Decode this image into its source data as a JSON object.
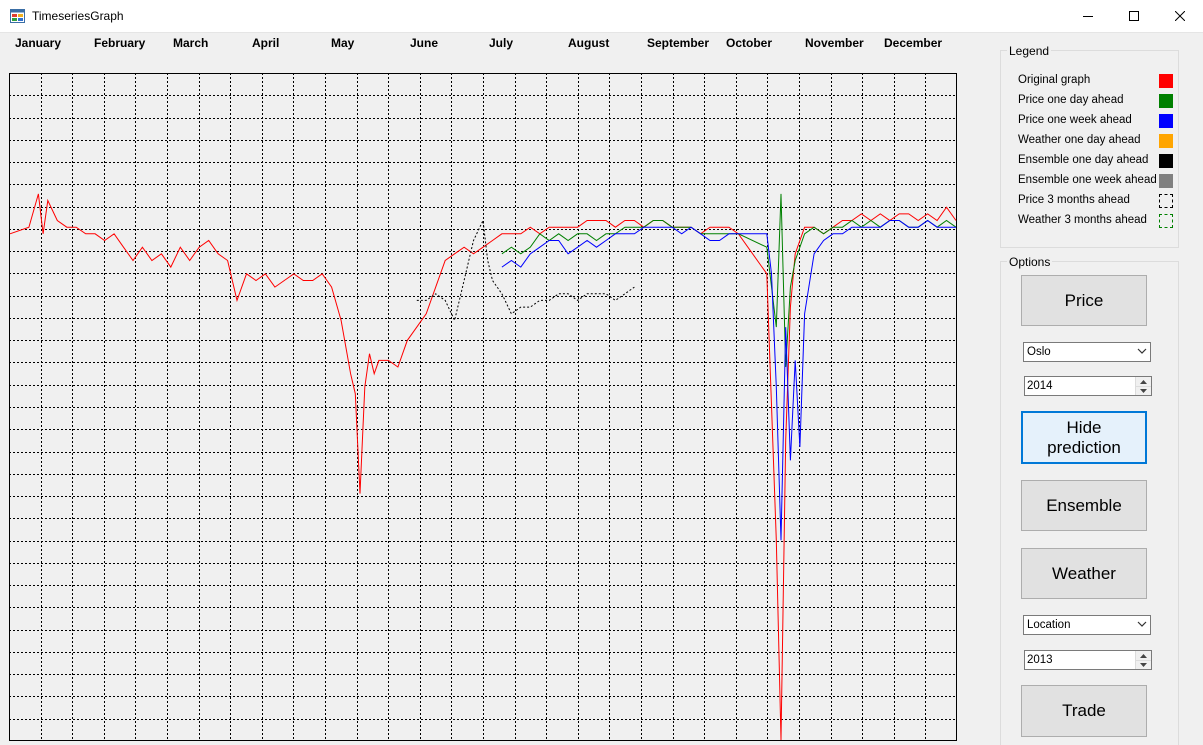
{
  "window": {
    "title": "TimeseriesGraph"
  },
  "icons": {
    "app": "app-window-icon",
    "minimize": "minimize-icon",
    "maximize": "maximize-icon",
    "close": "close-icon"
  },
  "chart_data": {
    "type": "line",
    "title": "",
    "xlabel": "",
    "ylabel": "",
    "categories": [
      "January",
      "February",
      "March",
      "April",
      "May",
      "June",
      "July",
      "August",
      "September",
      "October",
      "November",
      "December"
    ],
    "grid": true,
    "ylim": [
      0,
      1
    ],
    "series": [
      {
        "name": "Original graph",
        "color": "#ff0000",
        "style": "solid",
        "x": [
          0,
          0.02,
          0.03,
          0.035,
          0.04,
          0.05,
          0.06,
          0.07,
          0.08,
          0.09,
          0.1,
          0.11,
          0.12,
          0.13,
          0.14,
          0.15,
          0.16,
          0.17,
          0.18,
          0.19,
          0.2,
          0.21,
          0.22,
          0.23,
          0.24,
          0.25,
          0.26,
          0.27,
          0.28,
          0.29,
          0.3,
          0.31,
          0.32,
          0.33,
          0.34,
          0.35,
          0.36,
          0.365,
          0.37,
          0.375,
          0.38,
          0.385,
          0.39,
          0.4,
          0.41,
          0.42,
          0.43,
          0.44,
          0.45,
          0.46,
          0.47,
          0.48,
          0.49,
          0.5,
          0.51,
          0.52,
          0.53,
          0.54,
          0.55,
          0.56,
          0.57,
          0.58,
          0.59,
          0.6,
          0.61,
          0.62,
          0.63,
          0.64,
          0.65,
          0.66,
          0.67,
          0.68,
          0.69,
          0.7,
          0.71,
          0.72,
          0.73,
          0.74,
          0.75,
          0.76,
          0.77,
          0.8,
          0.81,
          0.815,
          0.82,
          0.825,
          0.83,
          0.84,
          0.85,
          0.86,
          0.87,
          0.88,
          0.89,
          0.9,
          0.91,
          0.92,
          0.93,
          0.94,
          0.95,
          0.96,
          0.97,
          0.98,
          0.99,
          1.0
        ],
        "y": [
          0.76,
          0.77,
          0.82,
          0.76,
          0.81,
          0.78,
          0.77,
          0.77,
          0.76,
          0.76,
          0.75,
          0.76,
          0.74,
          0.72,
          0.74,
          0.72,
          0.73,
          0.71,
          0.74,
          0.72,
          0.74,
          0.75,
          0.73,
          0.72,
          0.66,
          0.7,
          0.69,
          0.7,
          0.68,
          0.69,
          0.7,
          0.69,
          0.69,
          0.7,
          0.68,
          0.63,
          0.55,
          0.52,
          0.37,
          0.53,
          0.58,
          0.55,
          0.57,
          0.57,
          0.56,
          0.6,
          0.62,
          0.64,
          0.68,
          0.72,
          0.73,
          0.74,
          0.73,
          0.74,
          0.75,
          0.76,
          0.76,
          0.76,
          0.77,
          0.76,
          0.77,
          0.77,
          0.77,
          0.77,
          0.78,
          0.78,
          0.78,
          0.77,
          0.78,
          0.78,
          0.77,
          0.78,
          0.78,
          0.77,
          0.77,
          0.77,
          0.76,
          0.77,
          0.77,
          0.77,
          0.76,
          0.7,
          0.3,
          0.0,
          0.45,
          0.65,
          0.73,
          0.77,
          0.77,
          0.76,
          0.77,
          0.78,
          0.78,
          0.79,
          0.78,
          0.79,
          0.78,
          0.79,
          0.79,
          0.78,
          0.79,
          0.78,
          0.8,
          0.78
        ]
      },
      {
        "name": "Price one day ahead",
        "color": "#008000",
        "style": "solid",
        "x": [
          0.52,
          0.53,
          0.54,
          0.55,
          0.56,
          0.57,
          0.58,
          0.59,
          0.6,
          0.61,
          0.62,
          0.63,
          0.64,
          0.65,
          0.66,
          0.67,
          0.68,
          0.69,
          0.7,
          0.71,
          0.72,
          0.73,
          0.74,
          0.75,
          0.76,
          0.77,
          0.8,
          0.81,
          0.815,
          0.82,
          0.825,
          0.83,
          0.84,
          0.85,
          0.86,
          0.87,
          0.88,
          0.89,
          0.9,
          0.91,
          0.92,
          0.93,
          0.94,
          0.95,
          0.96,
          0.97,
          0.98,
          0.99,
          1.0
        ],
        "y": [
          0.73,
          0.74,
          0.73,
          0.74,
          0.76,
          0.75,
          0.76,
          0.75,
          0.76,
          0.76,
          0.75,
          0.76,
          0.76,
          0.77,
          0.77,
          0.77,
          0.78,
          0.78,
          0.77,
          0.77,
          0.77,
          0.76,
          0.76,
          0.76,
          0.76,
          0.76,
          0.74,
          0.62,
          0.82,
          0.56,
          0.68,
          0.72,
          0.76,
          0.77,
          0.76,
          0.77,
          0.77,
          0.78,
          0.77,
          0.78,
          0.77,
          0.78,
          0.78,
          0.77,
          0.77,
          0.78,
          0.77,
          0.78,
          0.77
        ]
      },
      {
        "name": "Price one week ahead",
        "color": "#0000ff",
        "style": "solid",
        "x": [
          0.52,
          0.53,
          0.54,
          0.55,
          0.56,
          0.57,
          0.58,
          0.59,
          0.6,
          0.61,
          0.62,
          0.63,
          0.64,
          0.65,
          0.66,
          0.67,
          0.68,
          0.69,
          0.7,
          0.71,
          0.72,
          0.73,
          0.74,
          0.75,
          0.76,
          0.77,
          0.8,
          0.805,
          0.81,
          0.815,
          0.82,
          0.825,
          0.83,
          0.835,
          0.84,
          0.85,
          0.86,
          0.87,
          0.88,
          0.89,
          0.9,
          0.91,
          0.92,
          0.93,
          0.94,
          0.95,
          0.96,
          0.97,
          0.98,
          0.99,
          1.0
        ],
        "y": [
          0.71,
          0.72,
          0.71,
          0.73,
          0.74,
          0.75,
          0.75,
          0.73,
          0.74,
          0.75,
          0.74,
          0.75,
          0.76,
          0.76,
          0.76,
          0.77,
          0.77,
          0.77,
          0.77,
          0.76,
          0.77,
          0.76,
          0.75,
          0.75,
          0.76,
          0.76,
          0.76,
          0.7,
          0.53,
          0.3,
          0.62,
          0.42,
          0.57,
          0.44,
          0.64,
          0.73,
          0.75,
          0.76,
          0.76,
          0.77,
          0.77,
          0.77,
          0.77,
          0.78,
          0.78,
          0.77,
          0.77,
          0.78,
          0.77,
          0.77,
          0.77
        ]
      },
      {
        "name": "Price 3 months ahead",
        "color": "#000000",
        "style": "dashed",
        "x": [
          0.43,
          0.44,
          0.45,
          0.46,
          0.47,
          0.48,
          0.49,
          0.5,
          0.505,
          0.51,
          0.52,
          0.53,
          0.54,
          0.55,
          0.56,
          0.57,
          0.58,
          0.59,
          0.6,
          0.61,
          0.62,
          0.63,
          0.64,
          0.65,
          0.66
        ],
        "y": [
          0.66,
          0.66,
          0.67,
          0.66,
          0.63,
          0.69,
          0.75,
          0.78,
          0.72,
          0.69,
          0.67,
          0.64,
          0.65,
          0.65,
          0.66,
          0.66,
          0.67,
          0.67,
          0.66,
          0.67,
          0.67,
          0.67,
          0.66,
          0.67,
          0.68
        ]
      }
    ]
  },
  "legend": {
    "title": "Legend",
    "items": [
      {
        "label": "Original graph",
        "color": "#ff0000",
        "style": "fill",
        "icon": "red-swatch"
      },
      {
        "label": "Price one day ahead",
        "color": "#008000",
        "style": "fill",
        "icon": "green-swatch"
      },
      {
        "label": "Price one week ahead",
        "color": "#0000ff",
        "style": "fill",
        "icon": "blue-swatch"
      },
      {
        "label": "Weather one day ahead",
        "color": "#ffa500",
        "style": "fill",
        "icon": "orange-swatch"
      },
      {
        "label": "Ensemble one day ahead",
        "color": "#000000",
        "style": "fill",
        "icon": "black-swatch"
      },
      {
        "label": "Ensemble one week ahead",
        "color": "#808080",
        "style": "fill",
        "icon": "gray-swatch"
      },
      {
        "label": "Price 3 months ahead",
        "color": "#000000",
        "style": "dashed",
        "icon": "black-dashed-swatch"
      },
      {
        "label": "Weather 3 months ahead",
        "color": "#008000",
        "style": "dashed",
        "icon": "green-dashed-swatch"
      }
    ]
  },
  "options": {
    "title": "Options",
    "price_button": "Price",
    "area_select": {
      "value": "Oslo"
    },
    "price_year": {
      "value": "2014"
    },
    "hide_prediction_button": "Hide prediction",
    "ensemble_button": "Ensemble",
    "weather_button": "Weather",
    "location_select": {
      "value": "Location"
    },
    "weather_year": {
      "value": "2013"
    },
    "trade_button": "Trade"
  }
}
